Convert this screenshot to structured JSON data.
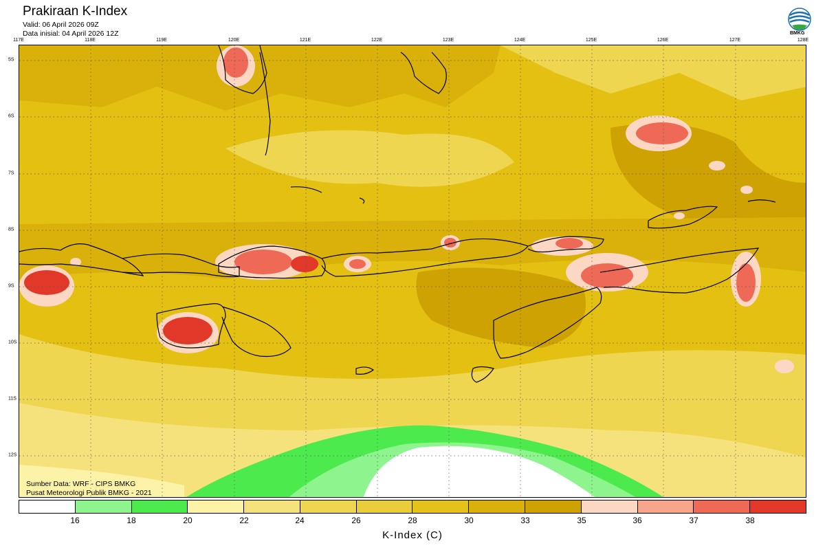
{
  "header": {
    "title": "Prakiraan K-Index",
    "valid": "Valid: 06 April 2026 09Z",
    "init": "Data inisial: 04 April 2026 12Z",
    "logo_text": "BMKG"
  },
  "map": {
    "lon_labels": [
      "117E",
      "118E",
      "119E",
      "120E",
      "121E",
      "122E",
      "123E",
      "124E",
      "125E",
      "126E",
      "127E",
      "128E"
    ],
    "lat_labels": [
      "5S",
      "6S",
      "7S",
      "8S",
      "9S",
      "10S",
      "11S",
      "12S"
    ],
    "source": "Sumber Data: WRF - CIPS BMKG",
    "agency": "Pusat Meteorologi Publik BMKG - 2021"
  },
  "colorbar": {
    "title": "K-Index (C)",
    "labels": [
      "16",
      "18",
      "20",
      "22",
      "24",
      "26",
      "28",
      "30",
      "33",
      "35",
      "36",
      "37",
      "38"
    ],
    "colors": [
      "#ffffff",
      "#8ef58e",
      "#4cea4c",
      "#fdf3a8",
      "#f6e27c",
      "#eed651",
      "#e9cd3a",
      "#e5c21a",
      "#dab10a",
      "#cfa204",
      "#fcd8c4",
      "#f6a48a",
      "#ef6a56",
      "#e1382a"
    ]
  }
}
